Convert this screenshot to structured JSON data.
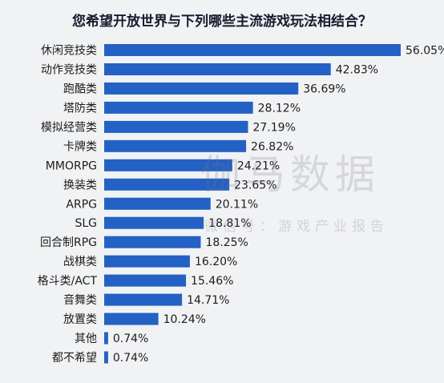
{
  "chart_data": {
    "type": "bar",
    "orientation": "horizontal",
    "title": "您希望开放世界与下列哪些主流游戏玩法相结合？",
    "categories": [
      "休闲竞技类",
      "动作竞技类",
      "跑酷类",
      "塔防类",
      "模拟经营类",
      "卡牌类",
      "MMORPG",
      "换装类",
      "ARPG",
      "SLG",
      "回合制RPG",
      "战棋类",
      "格斗类/ACT",
      "音舞类",
      "放置类",
      "其他",
      "都不希望"
    ],
    "values": [
      56.05,
      42.83,
      36.69,
      28.12,
      27.19,
      26.82,
      24.21,
      23.65,
      20.11,
      18.81,
      18.25,
      16.2,
      15.46,
      14.71,
      10.24,
      0.74,
      0.74
    ],
    "value_labels": [
      "56.05%",
      "42.83%",
      "36.69%",
      "28.12%",
      "27.19%",
      "26.82%",
      "24.21%",
      "23.65%",
      "20.11%",
      "18.81%",
      "18.25%",
      "16.20%",
      "15.46%",
      "14.71%",
      "10.24%",
      "0.74%",
      "0.74%"
    ],
    "bar_color": "#2461c4",
    "xlim": [
      0,
      56.05
    ],
    "grid": false,
    "legend": "none"
  },
  "watermark": {
    "brand": "伽马数据",
    "subtitle": "微信号：游戏产业报告"
  }
}
